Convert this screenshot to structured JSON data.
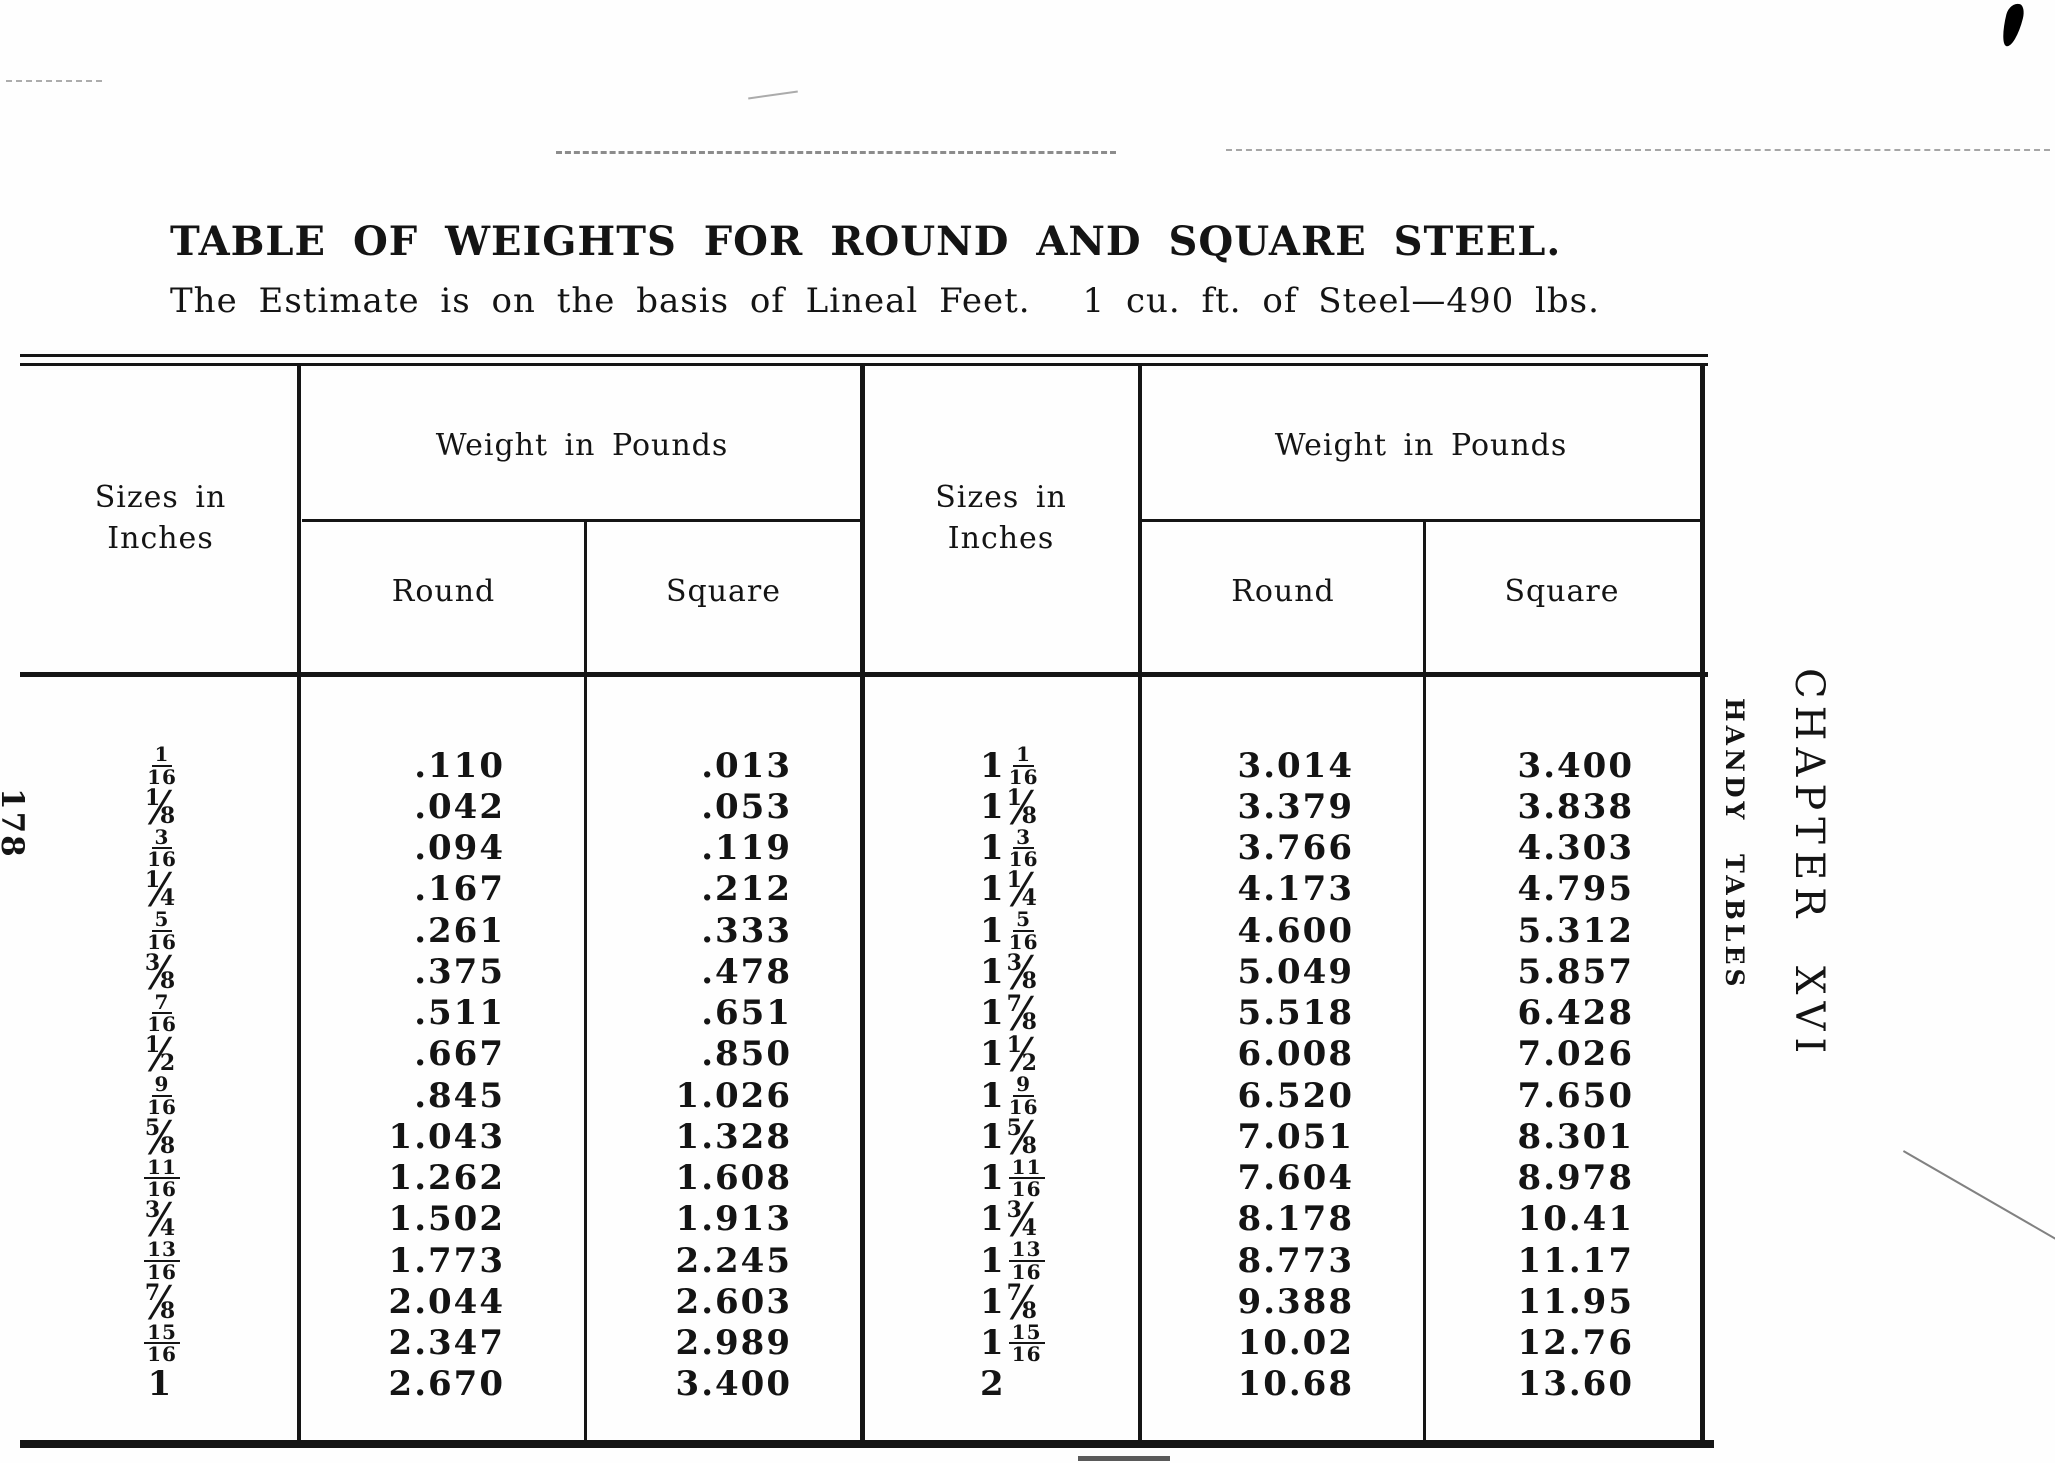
{
  "page": {
    "title": "TABLE OF WEIGHTS FOR ROUND AND SQUARE STEEL.",
    "subtitle_part1": "The Estimate is on the basis of Lineal Feet.",
    "subtitle_part2": "1 cu. ft. of Steel—490 lbs.",
    "page_number": "178",
    "chapter_heading": "CHAPTER XVI",
    "running_head": "HANDY TABLES"
  },
  "table": {
    "sizes_header": "Sizes in Inches",
    "weight_header": "Weight in Pounds",
    "round_header": "Round",
    "square_header": "Square",
    "left_rows": [
      {
        "size": "1/16",
        "round": ".110",
        "square": ".013"
      },
      {
        "size": "1/8",
        "round": ".042",
        "square": ".053"
      },
      {
        "size": "3/16",
        "round": ".094",
        "square": ".119"
      },
      {
        "size": "1/4",
        "round": ".167",
        "square": ".212"
      },
      {
        "size": "5/16",
        "round": ".261",
        "square": ".333"
      },
      {
        "size": "3/8",
        "round": ".375",
        "square": ".478"
      },
      {
        "size": "7/16",
        "round": ".511",
        "square": ".651"
      },
      {
        "size": "1/2",
        "round": ".667",
        "square": ".850"
      },
      {
        "size": "9/16",
        "round": ".845",
        "square": "1.026"
      },
      {
        "size": "5/8",
        "round": "1.043",
        "square": "1.328"
      },
      {
        "size": "11/16",
        "round": "1.262",
        "square": "1.608"
      },
      {
        "size": "3/4",
        "round": "1.502",
        "square": "1.913"
      },
      {
        "size": "13/16",
        "round": "1.773",
        "square": "2.245"
      },
      {
        "size": "7/8",
        "round": "2.044",
        "square": "2.603"
      },
      {
        "size": "15/16",
        "round": "2.347",
        "square": "2.989"
      },
      {
        "size": "1",
        "round": "2.670",
        "square": "3.400"
      }
    ],
    "right_rows": [
      {
        "size": "1 1/16",
        "round": "3.014",
        "square": "3.400"
      },
      {
        "size": "1 1/8",
        "round": "3.379",
        "square": "3.838"
      },
      {
        "size": "1 3/16",
        "round": "3.766",
        "square": "4.303"
      },
      {
        "size": "1 1/4",
        "round": "4.173",
        "square": "4.795"
      },
      {
        "size": "1 5/16",
        "round": "4.600",
        "square": "5.312"
      },
      {
        "size": "1 3/8",
        "round": "5.049",
        "square": "5.857"
      },
      {
        "size": "1 7/8",
        "round": "5.518",
        "square": "6.428"
      },
      {
        "size": "1 1/2",
        "round": "6.008",
        "square": "7.026"
      },
      {
        "size": "1 9/16",
        "round": "6.520",
        "square": "7.650"
      },
      {
        "size": "1 5/8",
        "round": "7.051",
        "square": "8.301"
      },
      {
        "size": "1 11/16",
        "round": "7.604",
        "square": "8.978"
      },
      {
        "size": "1 3/4",
        "round": "8.178",
        "square": "10.41"
      },
      {
        "size": "1 13/16",
        "round": "8.773",
        "square": "11.17"
      },
      {
        "size": "1 7/8",
        "round": "9.388",
        "square": "11.95"
      },
      {
        "size": "1 15/16",
        "round": "10.02",
        "square": "12.76"
      },
      {
        "size": "2",
        "round": "10.68",
        "square": "13.60"
      }
    ]
  }
}
